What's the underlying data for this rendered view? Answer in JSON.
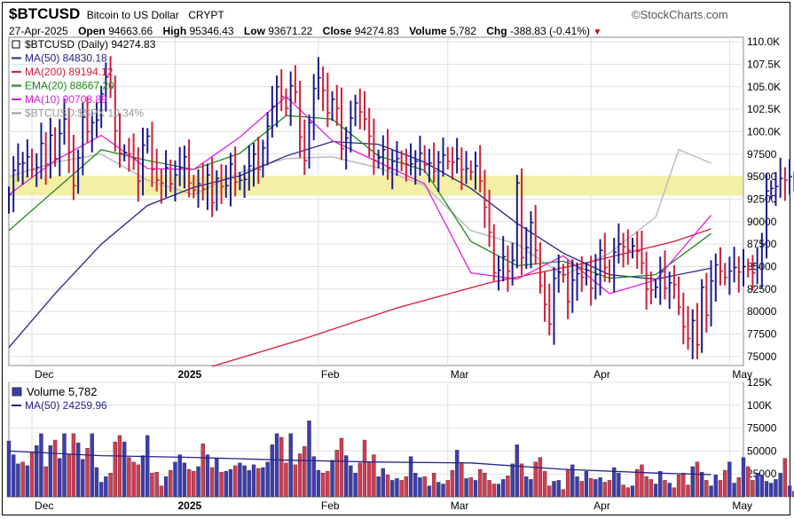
{
  "header": {
    "symbol": "$BTCUSD",
    "name": "Bitcoin to US Dollar",
    "exchange": "CRYPT",
    "date": "27-Apr-2025",
    "open_label": "Open",
    "open": "94663.66",
    "high_label": "High",
    "high": "95346.43",
    "low_label": "Low",
    "low": "93671.22",
    "close_label": "Close",
    "close": "94274.83",
    "volume_label": "Volume",
    "volume": "5,782",
    "chg_label": "Chg",
    "chg": "-388.83 (-0.41%)",
    "brand": "©StockCharts.com"
  },
  "legend": {
    "price": "$BTCUSD (Daily) 94274.83",
    "ma50": "MA(50) 84830.18",
    "ma200": "MA(200) 89194.12",
    "ema20": "EMA(20) 88667.20",
    "ma10": "MA(10) 90708.89",
    "ratio": "$BTCUSD:$SPX 10.34%",
    "volume": "Volume 5,782",
    "vol_ma50": "MA(50) 24259.96"
  },
  "colors": {
    "up": "#1a1a8c",
    "down": "#cc1f3a",
    "ma50": "#24248a",
    "ma200": "#d81b3c",
    "ema20": "#1e8a1e",
    "ma10": "#e01ee0",
    "ratio": "#bdbdbd",
    "band": "#f3f0a6",
    "vol_up": "#3c3cb4",
    "vol_down": "#d63a52",
    "brand_red": "#cc0000"
  },
  "chart_data": [
    {
      "type": "candlestick",
      "title": "$BTCUSD Bitcoin to US Dollar CRYPT",
      "ylim": [
        74000,
        110500
      ],
      "y_scale": "linear",
      "y_ticks": [
        75000,
        77500,
        80000,
        82500,
        85000,
        87500,
        90000,
        92500,
        95000,
        97500,
        100000,
        102500,
        105000,
        107500,
        110000
      ],
      "y_tick_labels": [
        "75000",
        "77500",
        "80000",
        "82500",
        "85000",
        "87500",
        "90000",
        "92500",
        "95000",
        "97500",
        "100.0K",
        "102.5K",
        "105.0K",
        "107.5K",
        "110.0K"
      ],
      "x_tick_labels": [
        "Dec",
        "2025",
        "Feb",
        "Mar",
        "Apr",
        "May"
      ],
      "x_tick_dates": [
        "2024-12-01",
        "2025-01-01",
        "2025-02-01",
        "2025-03-01",
        "2025-04-01",
        "2025-05-01"
      ],
      "x_range": [
        "2024-11-26",
        "2025-05-04"
      ],
      "support_band": [
        92900,
        95100
      ],
      "grid": true,
      "legend_position": "top-left",
      "series": [
        {
          "name": "$BTCUSD (Daily)",
          "style": "candle",
          "x_start": "2024-11-26",
          "close": [
            93000,
            95700,
            96400,
            96500,
            97200,
            95800,
            96000,
            98700,
            96400,
            99600,
            97000,
            99800,
            101400,
            97700,
            94000,
            97100,
            101600,
            100000,
            101000,
            101300,
            104200,
            106100,
            105000,
            100100,
            97600,
            97700,
            97500,
            97000,
            94500,
            98500,
            99500,
            95800,
            94600,
            94300,
            96000,
            94200,
            95200,
            96000,
            97200,
            94300,
            93500,
            94200,
            93600,
            95200,
            92100,
            94800,
            93900,
            94000,
            96400,
            94400,
            94600,
            94700,
            96200,
            97500,
            95800,
            98200,
            100600,
            102800,
            105000,
            103900,
            102600,
            105100,
            104400,
            99400,
            96800,
            101000,
            104800,
            106000,
            104600,
            102100,
            103600,
            102600,
            98100,
            99300,
            101500,
            103200,
            102200,
            101400,
            99500,
            96800,
            97100,
            98000,
            95900,
            96700,
            97000,
            96500,
            96400,
            96400,
            96700,
            97600,
            96300,
            96500,
            95600,
            96600,
            97400,
            96700,
            96600,
            97000,
            95800,
            95900,
            95500,
            96200,
            94500,
            91600,
            88800,
            84300,
            84600,
            86100,
            84500,
            85700,
            94300,
            86000,
            87100,
            89900,
            86800,
            82900,
            80800,
            78600,
            83700,
            84400,
            84100,
            81100,
            83500,
            84200,
            83800,
            84600,
            82600,
            84100,
            86800,
            84900,
            84100,
            86600,
            87500,
            87200,
            86800,
            87300,
            86700,
            85400,
            82500,
            82400,
            82700,
            84500,
            82600,
            83200,
            83000,
            80500,
            78300,
            77000,
            79000,
            76300,
            82700,
            79600,
            83400,
            85200,
            84500,
            83800,
            84500,
            84900,
            84400,
            85000,
            84700,
            84300,
            84900,
            87500,
            93400,
            93700,
            93900,
            94800,
            94600,
            95000,
            94300
          ],
          "open": [
            91800,
            93000,
            95700,
            96400,
            96500,
            97200,
            95800,
            96000,
            98700,
            96400,
            99600,
            97000,
            99800,
            101400,
            97700,
            94000,
            97100,
            101600,
            100000,
            101000,
            101300,
            104200,
            106100,
            105000,
            100100,
            97600,
            97700,
            97500,
            97000,
            94500,
            98500,
            99500,
            95800,
            94600,
            94300,
            96000,
            94200,
            95200,
            96000,
            97200,
            94300,
            93500,
            94200,
            93600,
            95200,
            92100,
            94800,
            93900,
            94000,
            96400,
            94400,
            94600,
            94700,
            96200,
            97500,
            95800,
            98200,
            100600,
            102800,
            105000,
            103900,
            102600,
            105100,
            104400,
            99400,
            96800,
            101000,
            104800,
            106000,
            104600,
            102100,
            103600,
            102600,
            98100,
            99300,
            101500,
            103200,
            102200,
            101400,
            99500,
            96800,
            97100,
            98000,
            95900,
            96700,
            97000,
            96500,
            96400,
            96400,
            96700,
            97600,
            96300,
            96500,
            95600,
            96600,
            97400,
            96700,
            96600,
            97000,
            95800,
            95900,
            95500,
            96200,
            94500,
            91600,
            88800,
            84300,
            84600,
            86100,
            84500,
            85700,
            94300,
            86000,
            87100,
            89900,
            86800,
            82900,
            80800,
            78600,
            83700,
            84400,
            84100,
            81100,
            83500,
            84200,
            83800,
            84600,
            82600,
            84100,
            86800,
            84900,
            84100,
            86600,
            87500,
            87200,
            86800,
            87300,
            86700,
            85400,
            82500,
            82400,
            82700,
            84500,
            82600,
            83200,
            83000,
            80500,
            78300,
            77000,
            79000,
            76300,
            82700,
            79600,
            83400,
            85200,
            84500,
            83800,
            84500,
            84900,
            84400,
            85000,
            84700,
            84300,
            84900,
            87500,
            93400,
            93700,
            93900,
            94800,
            94600,
            94663
          ]
        },
        {
          "name": "MA(50)",
          "x": [
            "2024-11-26",
            "2024-12-06",
            "2024-12-16",
            "2024-12-26",
            "2025-01-05",
            "2025-01-15",
            "2025-01-25",
            "2025-02-04",
            "2025-02-14",
            "2025-02-24",
            "2025-03-06",
            "2025-03-16",
            "2025-03-26",
            "2025-04-05",
            "2025-04-15",
            "2025-04-27"
          ],
          "y": [
            76000,
            82000,
            87500,
            91800,
            93800,
            95100,
            97300,
            98900,
            98600,
            96600,
            93700,
            89800,
            86500,
            84100,
            83600,
            84830
          ]
        },
        {
          "name": "MA(200)",
          "x": [
            "2025-01-09",
            "2025-01-29",
            "2025-02-18",
            "2025-03-10",
            "2025-03-30",
            "2025-04-19",
            "2025-04-27"
          ],
          "y": [
            73900,
            77000,
            80400,
            83200,
            85300,
            87800,
            89194
          ]
        },
        {
          "name": "EMA(20)",
          "x": [
            "2024-11-26",
            "2024-12-06",
            "2024-12-16",
            "2024-12-26",
            "2025-01-05",
            "2025-01-15",
            "2025-01-25",
            "2025-02-04",
            "2025-02-14",
            "2025-02-24",
            "2025-03-06",
            "2025-03-16",
            "2025-03-26",
            "2025-04-05",
            "2025-04-15",
            "2025-04-27"
          ],
          "y": [
            89000,
            93500,
            98000,
            96800,
            95800,
            97600,
            101800,
            101400,
            97300,
            95700,
            87800,
            85100,
            85600,
            83700,
            84100,
            88667
          ]
        },
        {
          "name": "MA(10)",
          "x": [
            "2024-11-26",
            "2024-12-06",
            "2024-12-16",
            "2024-12-26",
            "2025-01-05",
            "2025-01-15",
            "2025-01-25",
            "2025-02-04",
            "2025-02-14",
            "2025-02-24",
            "2025-03-06",
            "2025-03-16",
            "2025-03-26",
            "2025-04-05",
            "2025-04-15",
            "2025-04-27"
          ],
          "y": [
            93000,
            96800,
            99600,
            95900,
            95800,
            99400,
            103900,
            99000,
            96600,
            94200,
            84300,
            83600,
            86200,
            82000,
            83500,
            90709
          ]
        },
        {
          "name": "$BTCUSD:$SPX",
          "x": [
            "2024-11-26",
            "2024-12-06",
            "2024-12-16",
            "2024-12-26",
            "2025-01-05",
            "2025-01-15",
            "2025-01-25",
            "2025-02-04",
            "2025-02-14",
            "2025-02-24",
            "2025-03-06",
            "2025-03-16",
            "2025-03-26",
            "2025-04-05",
            "2025-04-15",
            "2025-04-20",
            "2025-04-27"
          ],
          "y": [
            95000,
            96600,
            97500,
            94600,
            93000,
            95500,
            97000,
            97200,
            96000,
            94000,
            89000,
            87500,
            84000,
            86500,
            90500,
            98000,
            96500
          ]
        }
      ]
    },
    {
      "type": "bar",
      "title": "Volume",
      "ylim": [
        0,
        125000
      ],
      "y_ticks": [
        25000,
        50000,
        75000,
        100000,
        125000
      ],
      "y_tick_labels": [
        "25000",
        "50000",
        "75000",
        "100K",
        "125K"
      ],
      "x_tick_labels": [
        "Dec",
        "2025",
        "Feb",
        "Mar",
        "Apr",
        "May"
      ],
      "series": [
        {
          "name": "Volume",
          "x_start": "2024-11-26",
          "values": [
            61000,
            46000,
            36000,
            38000,
            34000,
            49000,
            56000,
            69000,
            33000,
            56000,
            62000,
            42000,
            69000,
            46000,
            69000,
            59000,
            41000,
            53000,
            69000,
            32000,
            16000,
            22000,
            26000,
            60000,
            67000,
            60000,
            43000,
            38000,
            35000,
            45000,
            67000,
            26000,
            27000,
            12000,
            22000,
            29000,
            38000,
            46000,
            37000,
            30000,
            28000,
            33000,
            58000,
            46000,
            32000,
            42000,
            27000,
            28000,
            30000,
            34000,
            37000,
            34000,
            29000,
            35000,
            31000,
            32000,
            38000,
            57000,
            69000,
            65000,
            37000,
            69000,
            35000,
            47000,
            55000,
            83000,
            44000,
            29000,
            26000,
            28000,
            40000,
            51000,
            64000,
            45000,
            34000,
            26000,
            37000,
            62000,
            38000,
            46000,
            22000,
            31000,
            24000,
            18000,
            20000,
            18000,
            22000,
            44000,
            26000,
            21000,
            22000,
            12000,
            26000,
            16000,
            14000,
            18000,
            29000,
            51000,
            36000,
            20000,
            21000,
            18000,
            30000,
            26000,
            18000,
            14000,
            14000,
            19000,
            23000,
            36000,
            57000,
            36000,
            22000,
            19000,
            38000,
            43000,
            28000,
            12000,
            17000,
            18000,
            8000,
            30000,
            35000,
            22000,
            17000,
            28000,
            20000,
            19000,
            21000,
            16000,
            18000,
            32000,
            26000,
            13000,
            10000,
            12000,
            30000,
            35000,
            22000,
            19000,
            14000,
            28000,
            18000,
            15000,
            10000,
            24000,
            26000,
            13000,
            33000,
            38000,
            27000,
            18000,
            12000,
            24000,
            18000,
            29000,
            38000,
            15000,
            21000,
            43000,
            33000,
            18000,
            26000,
            24000,
            17000,
            15000,
            19000,
            26000,
            42000,
            12000,
            6000
          ],
          "up": [
            1,
            1,
            1,
            0,
            1,
            0,
            1,
            1,
            0,
            1,
            0,
            1,
            1,
            0,
            0,
            1,
            1,
            0,
            1,
            1,
            1,
            1,
            0,
            0,
            0,
            1,
            0,
            0,
            0,
            1,
            1,
            0,
            0,
            0,
            1,
            0,
            1,
            1,
            1,
            0,
            0,
            1,
            0,
            1,
            0,
            1,
            0,
            1,
            1,
            0,
            1,
            1,
            1,
            1,
            0,
            1,
            1,
            1,
            1,
            0,
            0,
            1,
            0,
            0,
            0,
            1,
            1,
            1,
            0,
            0,
            1,
            0,
            0,
            1,
            1,
            1,
            0,
            0,
            0,
            0,
            1,
            1,
            0,
            1,
            1,
            0,
            0,
            1,
            1,
            1,
            0,
            1,
            0,
            1,
            1,
            0,
            0,
            1,
            0,
            1,
            0,
            1,
            0,
            0,
            0,
            0,
            1,
            1,
            0,
            1,
            1,
            0,
            1,
            1,
            0,
            0,
            0,
            0,
            1,
            1,
            0,
            0,
            1,
            1,
            0,
            1,
            0,
            1,
            1,
            0,
            0,
            1,
            1,
            0,
            0,
            1,
            0,
            0,
            0,
            0,
            1,
            1,
            0,
            1,
            0,
            0,
            0,
            0,
            1,
            0,
            1,
            0,
            1,
            1,
            0,
            0,
            1,
            1,
            0,
            1,
            0,
            0,
            1,
            1,
            1,
            1,
            1,
            1,
            0,
            1,
            0
          ]
        },
        {
          "name": "MA(50)",
          "x": [
            "2024-11-26",
            "2024-12-16",
            "2025-01-05",
            "2025-01-25",
            "2025-02-14",
            "2025-03-06",
            "2025-03-26",
            "2025-04-15",
            "2025-04-27"
          ],
          "y": [
            50000,
            45000,
            43000,
            40000,
            38000,
            37000,
            30000,
            26000,
            24260
          ]
        }
      ]
    }
  ]
}
